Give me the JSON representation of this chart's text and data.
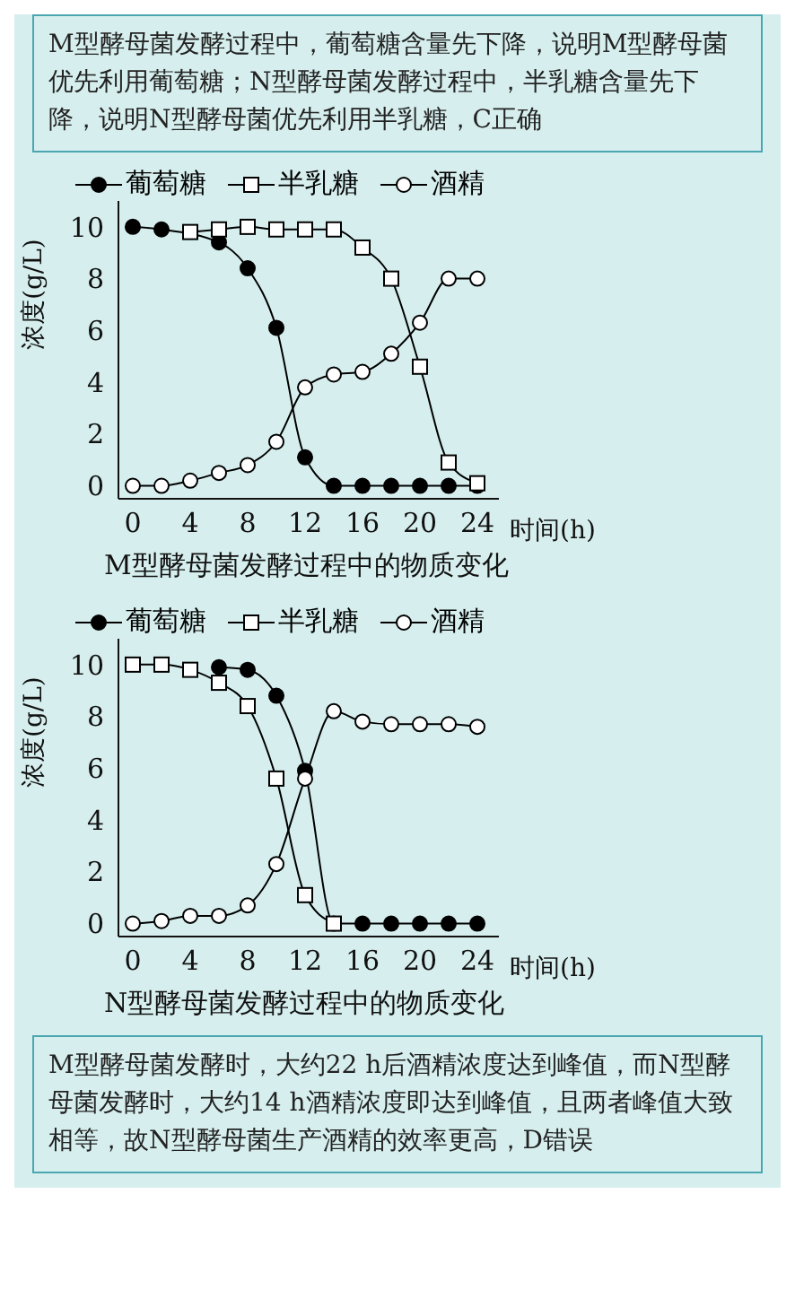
{
  "chart_data": [
    {
      "type": "line",
      "title": "M型酵母菌发酵过程中的物质变化",
      "xlabel": "时间(h)",
      "ylabel": "浓度(g/L)",
      "annotations": [
        "M型酵母菌发酵过程中，葡萄糖含量先下降，说明M型酵母菌优先利用葡萄糖；N型酵母菌发酵过程中，半乳糖含量先下降，说明N型酵母菌优先利用半乳糖，C正确"
      ],
      "x": [
        0,
        2,
        4,
        6,
        8,
        10,
        12,
        14,
        16,
        18,
        20,
        22,
        24
      ],
      "xlim": [
        -1,
        25.5
      ],
      "xticks": [
        0,
        4,
        8,
        12,
        16,
        20,
        24
      ],
      "ylim": [
        -0.5,
        11
      ],
      "yticks": [
        0,
        2,
        4,
        6,
        8,
        10
      ],
      "legend": "top",
      "series": [
        {
          "name": "葡萄糖",
          "color": "#000000",
          "marker": "circle",
          "values": [
            10,
            9.9,
            null,
            9.4,
            8.4,
            6.1,
            1.1,
            0,
            0,
            0,
            0,
            0,
            0
          ]
        },
        {
          "name": "半乳糖",
          "color": "#000000",
          "marker": "square",
          "values": [
            null,
            null,
            9.8,
            9.9,
            10,
            9.9,
            9.9,
            9.9,
            9.2,
            8,
            4.6,
            0.9,
            0.1
          ]
        },
        {
          "name": "酒精",
          "color": "#000000",
          "marker": "circle",
          "values": [
            0,
            0,
            0.2,
            0.5,
            0.8,
            1.7,
            3.8,
            4.3,
            4.4,
            5.1,
            6.3,
            8,
            8
          ]
        }
      ]
    },
    {
      "type": "line",
      "title": "N型酵母菌发酵过程中的物质变化",
      "xlabel": "时间(h)",
      "ylabel": "浓度(g/L)",
      "annotations": [
        "M型酵母菌发酵时，大约22 h后酒精浓度达到峰值，而N型酵母菌发酵时，大约14 h酒精浓度即达到峰值，且两者峰值大致相等，故N型酵母菌生产酒精的效率更高，D错误"
      ],
      "x": [
        0,
        2,
        4,
        6,
        8,
        10,
        12,
        14,
        16,
        18,
        20,
        22,
        24
      ],
      "xlim": [
        -1,
        25.5
      ],
      "xticks": [
        0,
        4,
        8,
        12,
        16,
        20,
        24
      ],
      "ylim": [
        -0.5,
        11
      ],
      "yticks": [
        0,
        2,
        4,
        6,
        8,
        10
      ],
      "legend": "top",
      "series": [
        {
          "name": "葡萄糖",
          "color": "#000000",
          "marker": "circle",
          "values": [
            null,
            null,
            null,
            9.9,
            9.8,
            8.8,
            5.9,
            0,
            0,
            0,
            0,
            0,
            0
          ]
        },
        {
          "name": "半乳糖",
          "color": "#000000",
          "marker": "square",
          "values": [
            10,
            10,
            9.8,
            9.3,
            8.4,
            5.6,
            1.1,
            0,
            null,
            null,
            null,
            null,
            null
          ]
        },
        {
          "name": "酒精",
          "color": "#000000",
          "marker": "circle",
          "values": [
            0,
            0.1,
            0.3,
            0.3,
            0.7,
            2.3,
            5.6,
            8.2,
            7.8,
            7.7,
            7.7,
            7.7,
            7.6
          ]
        }
      ]
    }
  ]
}
